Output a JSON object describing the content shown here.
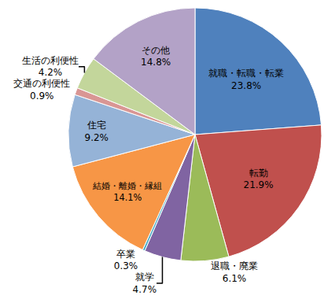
{
  "chart_data": {
    "type": "pie",
    "categories": [
      "就職・転職・転業",
      "転勤",
      "退職・廃業",
      "就学",
      "卒業",
      "結婚・離婚・縁組",
      "住宅",
      "交通の利便性",
      "生活の利便性",
      "その他"
    ],
    "values": [
      23.8,
      21.9,
      6.1,
      4.7,
      0.3,
      14.1,
      9.2,
      0.9,
      4.2,
      14.8
    ],
    "value_labels": [
      "23.8%",
      "21.9%",
      "6.1%",
      "4.7%",
      "0.3%",
      "14.1%",
      "9.2%",
      "0.9%",
      "4.2%",
      "14.8%"
    ],
    "colors": [
      "#4f81bd",
      "#c0504d",
      "#9bbb59",
      "#8064a2",
      "#4bacc6",
      "#f79646",
      "#95b3d7",
      "#d99694",
      "#c3d69b",
      "#b3a2c7"
    ],
    "data_labels": true
  }
}
